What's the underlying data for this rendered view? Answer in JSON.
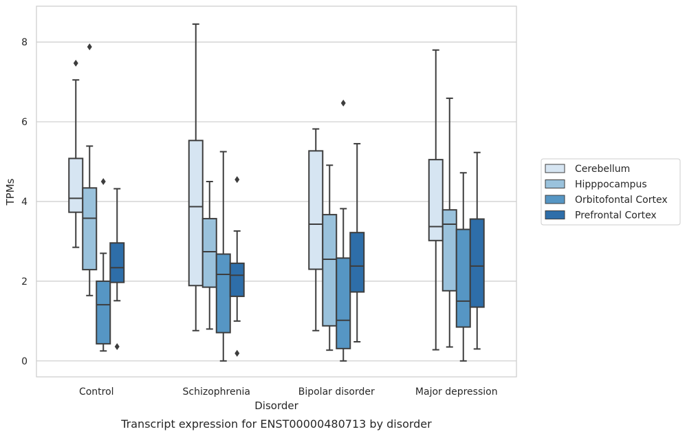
{
  "chart_data": {
    "type": "box",
    "title": "",
    "caption": "Transcript expression for ENST00000480713 by disorder",
    "xlabel": "Disorder",
    "ylabel": "TPMs",
    "ylim": [
      -0.4,
      8.9
    ],
    "yticks": [
      0,
      2,
      4,
      6,
      8
    ],
    "grid": "horizontal",
    "legend_position": "right",
    "categories": [
      "Control",
      "Schizophrenia",
      "Bipolar disorder",
      "Major depression"
    ],
    "series": [
      {
        "name": "Cerebellum",
        "color": "#d6e5f2",
        "boxes": [
          {
            "whisker_low": 2.85,
            "q1": 3.73,
            "median": 4.08,
            "q3": 5.08,
            "whisker_high": 7.05,
            "outliers": [
              7.47
            ]
          },
          {
            "whisker_low": 0.76,
            "q1": 1.89,
            "median": 3.87,
            "q3": 5.53,
            "whisker_high": 8.45,
            "outliers": []
          },
          {
            "whisker_low": 0.76,
            "q1": 2.3,
            "median": 3.43,
            "q3": 5.27,
            "whisker_high": 5.82,
            "outliers": []
          },
          {
            "whisker_low": 0.28,
            "q1": 3.02,
            "median": 3.37,
            "q3": 5.05,
            "whisker_high": 7.8,
            "outliers": []
          }
        ]
      },
      {
        "name": "Hipppocampus",
        "color": "#9ac2dc",
        "boxes": [
          {
            "whisker_low": 1.64,
            "q1": 2.29,
            "median": 3.58,
            "q3": 4.34,
            "whisker_high": 5.39,
            "outliers": [
              7.88
            ]
          },
          {
            "whisker_low": 0.8,
            "q1": 1.85,
            "median": 2.74,
            "q3": 3.57,
            "whisker_high": 4.5,
            "outliers": []
          },
          {
            "whisker_low": 0.27,
            "q1": 0.88,
            "median": 2.55,
            "q3": 3.67,
            "whisker_high": 4.91,
            "outliers": []
          },
          {
            "whisker_low": 0.35,
            "q1": 1.76,
            "median": 3.43,
            "q3": 3.79,
            "whisker_high": 6.59,
            "outliers": []
          }
        ]
      },
      {
        "name": "Orbitofontal Cortex",
        "color": "#5696c4",
        "boxes": [
          {
            "whisker_low": 0.25,
            "q1": 0.43,
            "median": 1.41,
            "q3": 2.0,
            "whisker_high": 2.7,
            "outliers": [
              4.5
            ]
          },
          {
            "whisker_low": 0.0,
            "q1": 0.71,
            "median": 2.17,
            "q3": 2.68,
            "whisker_high": 5.25,
            "outliers": []
          },
          {
            "whisker_low": 0.0,
            "q1": 0.31,
            "median": 1.02,
            "q3": 2.58,
            "whisker_high": 3.82,
            "outliers": [
              6.47
            ]
          },
          {
            "whisker_low": 0.0,
            "q1": 0.85,
            "median": 1.5,
            "q3": 3.3,
            "whisker_high": 4.72,
            "outliers": []
          }
        ]
      },
      {
        "name": "Prefrontal Cortex",
        "color": "#2e6ea9",
        "boxes": [
          {
            "whisker_low": 1.51,
            "q1": 1.97,
            "median": 2.34,
            "q3": 2.96,
            "whisker_high": 4.32,
            "outliers": [
              0.36
            ]
          },
          {
            "whisker_low": 1.0,
            "q1": 1.62,
            "median": 2.15,
            "q3": 2.45,
            "whisker_high": 3.26,
            "outliers": [
              4.55,
              0.19
            ]
          },
          {
            "whisker_low": 0.48,
            "q1": 1.73,
            "median": 2.38,
            "q3": 3.22,
            "whisker_high": 5.45,
            "outliers": []
          },
          {
            "whisker_low": 0.3,
            "q1": 1.35,
            "median": 2.38,
            "q3": 3.56,
            "whisker_high": 5.23,
            "outliers": []
          }
        ]
      }
    ]
  }
}
